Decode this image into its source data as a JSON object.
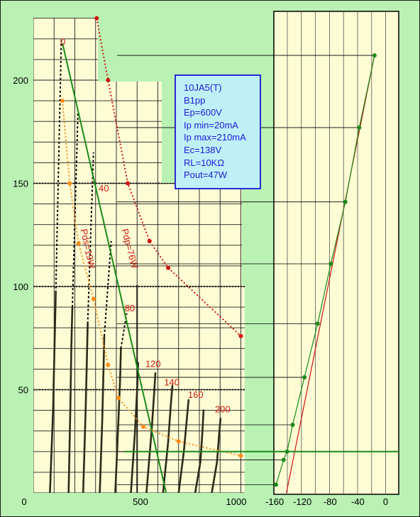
{
  "chart_data": [
    {
      "type": "line",
      "title": "",
      "xlabel": "",
      "ylabel": "",
      "x_tick_labels": [
        "0",
        "500",
        "1000"
      ],
      "y_tick_labels": [
        "50",
        "100",
        "150",
        "200"
      ],
      "xlim": [
        0,
        1075
      ],
      "ylim": [
        0,
        231
      ],
      "grid": true,
      "plate_curves": {
        "description": "plate characteristic curves (Ip vs Ep) for grid voltages",
        "series": [
          {
            "curve": 1,
            "points": [
              [
                80,
                0
              ],
              [
                95,
                40
              ],
              [
                102,
                70
              ],
              [
                108,
                97
              ]
            ],
            "extension": [
              [
                108,
                97
              ],
              [
                135,
                220
              ]
            ]
          },
          {
            "curve": 2,
            "points": [
              [
                170,
                0
              ],
              [
                178,
                40
              ],
              [
                183,
                70
              ],
              [
                188,
                90
              ]
            ],
            "extension": [
              [
                188,
                90
              ],
              [
                215,
                185
              ]
            ]
          },
          {
            "curve": 3,
            "points": [
              [
                240,
                0
              ],
              [
                252,
                40
              ],
              [
                258,
                65
              ],
              [
                262,
                82
              ]
            ],
            "extension": [
              [
                262,
                82
              ],
              [
                290,
                165
              ]
            ]
          },
          {
            "curve": 4,
            "points": [
              [
                320,
                0
              ],
              [
                332,
                35
              ],
              [
                338,
                60
              ],
              [
                342,
                76
              ]
            ],
            "extension": [
              [
                342,
                76
              ],
              [
                375,
                122
              ]
            ]
          },
          {
            "curve": 5,
            "points": [
              [
                395,
                0
              ],
              [
                410,
                35
              ],
              [
                418,
                55
              ],
              [
                422,
                70
              ]
            ],
            "extension": [
              [
                422,
                70
              ],
              [
                450,
                87
              ]
            ]
          },
          {
            "curve": 6,
            "points": [
              [
                470,
                0
              ],
              [
                490,
                30
              ],
              [
                500,
                50
              ],
              [
                505,
                63
              ]
            ]
          },
          {
            "curve": 7,
            "points": [
              [
                545,
                0
              ],
              [
                570,
                30
              ],
              [
                582,
                48
              ],
              [
                588,
                58
              ]
            ]
          },
          {
            "curve": 8,
            "points": [
              [
                625,
                0
              ],
              [
                650,
                25
              ],
              [
                662,
                42
              ],
              [
                670,
                52
              ]
            ]
          },
          {
            "curve": 9,
            "points": [
              [
                700,
                0
              ],
              [
                725,
                20
              ],
              [
                740,
                36
              ],
              [
                748,
                45
              ]
            ]
          },
          {
            "curve": 10,
            "points": [
              [
                780,
                0
              ],
              [
                805,
                15
              ],
              [
                815,
                30
              ],
              [
                820,
                40
              ]
            ]
          },
          {
            "curve": 11,
            "points": [
              [
                860,
                0
              ],
              [
                885,
                15
              ],
              [
                895,
                28
              ],
              [
                902,
                36
              ]
            ]
          }
        ]
      },
      "load_line": {
        "from": [
          140,
          218
        ],
        "to": [
          640,
          0
        ],
        "color": "#1a8a1a"
      },
      "pdp_curve": {
        "label": "Pdp=76W",
        "color": "#d01010",
        "points": [
          [
            305,
            230
          ],
          [
            360,
            200
          ],
          [
            455,
            150
          ],
          [
            560,
            122
          ],
          [
            650,
            109
          ],
          [
            1000,
            76
          ]
        ]
      },
      "pds_curve": {
        "label": "Pds=19W",
        "color": "#ff8c1a",
        "points": [
          [
            140,
            190
          ],
          [
            175,
            150
          ],
          [
            218,
            121
          ],
          [
            290,
            94
          ],
          [
            360,
            62
          ],
          [
            410,
            46
          ],
          [
            530,
            32
          ],
          [
            700,
            25
          ],
          [
            1000,
            18
          ]
        ]
      },
      "curve_labels": [
        {
          "text": "0",
          "ep": 130,
          "ip": 217
        },
        {
          "text": "40",
          "ep": 315,
          "ip": 146
        },
        {
          "text": "80",
          "ep": 440,
          "ip": 88
        },
        {
          "text": "120",
          "ep": 540,
          "ip": 61
        },
        {
          "text": "140",
          "ep": 630,
          "ip": 52
        },
        {
          "text": "160",
          "ep": 745,
          "ip": 46
        },
        {
          "text": "200",
          "ep": 875,
          "ip": 39
        }
      ]
    },
    {
      "type": "line",
      "title": "",
      "xlabel": "",
      "ylabel": "",
      "x_tick_labels": [
        "-160",
        "-120",
        "-80",
        "-40",
        "0"
      ],
      "xlim": [
        -170,
        10
      ],
      "ylim": [
        0,
        231
      ],
      "grid": true,
      "series": [
        {
          "color": "#1a8a1a",
          "points": [
            [
              -158,
              4
            ],
            [
              -147,
              16
            ],
            [
              -142,
              20
            ],
            [
              -134,
              33
            ],
            [
              -117,
              56
            ],
            [
              -98,
              82
            ],
            [
              -79,
              111
            ],
            [
              -58,
              141
            ],
            [
              -38,
              177
            ],
            [
              -16,
              212
            ]
          ]
        },
        {
          "color": "#d01010",
          "points": [
            [
              -143,
              0
            ],
            [
              -16,
              212
            ]
          ]
        }
      ]
    }
  ],
  "info_box": {
    "lines": [
      "10JA5(T)",
      "B1pp",
      "Ep=600V",
      "Ip min=20mA",
      "Ip max=210mA",
      "Ec=138V",
      "RL=10KΩ",
      "Pout=47W"
    ]
  },
  "colors": {
    "background": "#b9f2b3",
    "grid_paper": "#fdfcd4",
    "grid_line": "#1e1e1e",
    "load_line": "#1a8a1a",
    "pdp_curve": "#d01010",
    "pds_curve": "#ff8c1a"
  }
}
